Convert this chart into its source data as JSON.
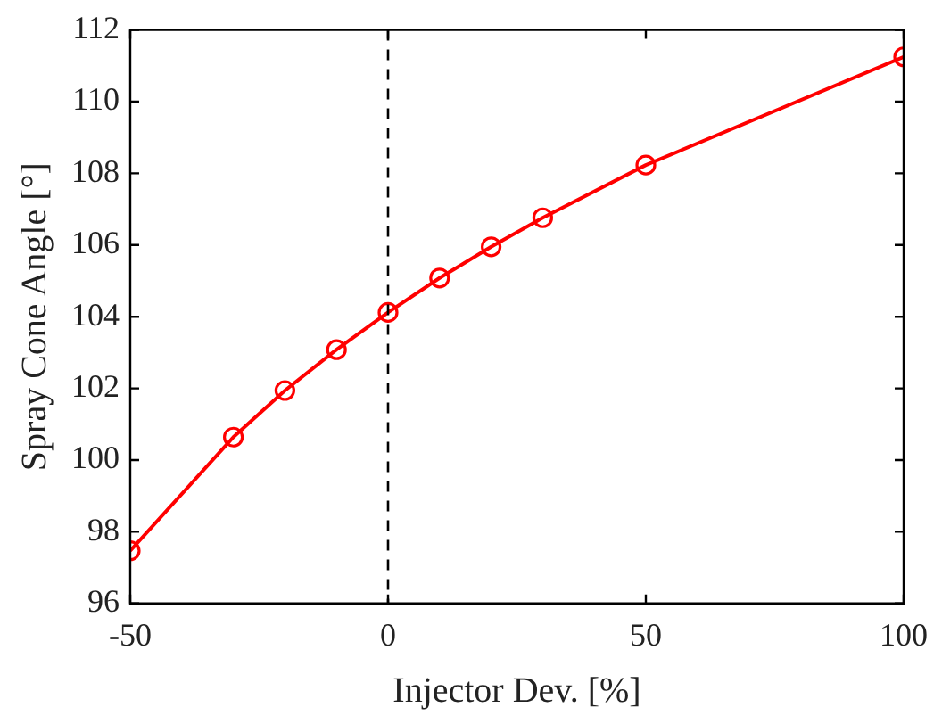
{
  "chart_data": {
    "type": "line",
    "xlabel": "Injector Dev. [%]",
    "ylabel": "Spray Cone Angle [°]",
    "x": [
      -50,
      -30,
      -20,
      -10,
      0,
      10,
      20,
      30,
      50,
      100
    ],
    "series": [
      {
        "color": "#ff0000",
        "values": [
          97.47,
          100.64,
          101.94,
          103.08,
          104.12,
          105.08,
          105.95,
          106.76,
          108.23,
          111.25
        ]
      }
    ],
    "xlim": [
      -50,
      100
    ],
    "xticks": [
      -50,
      0,
      50,
      100
    ],
    "ylim": [
      96,
      112
    ],
    "yticks": [
      96,
      98,
      100,
      102,
      104,
      106,
      108,
      110,
      112
    ],
    "ref_lines": [
      {
        "axis": "x",
        "value": 0,
        "color": "#000000",
        "line_style": "dashed"
      }
    ],
    "marker": "circle",
    "line_style": "solid",
    "legend": false
  }
}
